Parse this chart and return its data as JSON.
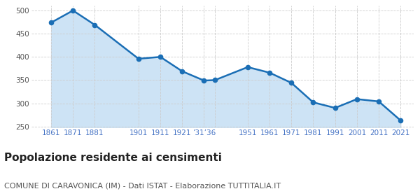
{
  "years": [
    1861,
    1871,
    1881,
    1901,
    1911,
    1921,
    1931,
    1936,
    1951,
    1961,
    1971,
    1981,
    1991,
    2001,
    2011,
    2021
  ],
  "population": [
    474,
    500,
    469,
    396,
    400,
    369,
    349,
    350,
    378,
    366,
    344,
    302,
    290,
    309,
    304,
    263
  ],
  "line_color": "#1a6eb5",
  "fill_color": "#cde3f5",
  "marker_color": "#1a6eb5",
  "background_color": "#ffffff",
  "grid_color": "#cccccc",
  "ylim": [
    248,
    510
  ],
  "yticks": [
    250,
    300,
    350,
    400,
    450,
    500
  ],
  "x_tick_positions": [
    1861,
    1871,
    1881,
    1901,
    1911,
    1921,
    1931,
    1936,
    1951,
    1961,
    1971,
    1981,
    1991,
    2001,
    2011,
    2021
  ],
  "x_tick_labels": [
    "1861",
    "1871",
    "1881",
    "1901",
    "1911",
    "1921",
    "’31’36",
    "",
    "1951",
    "1961",
    "1971",
    "1981",
    "1991",
    "2001",
    "2011",
    "2021"
  ],
  "xlim": [
    1852,
    2027
  ],
  "title": "Popolazione residente ai censimenti",
  "subtitle": "COMUNE DI CARAVONICA (IM) - Dati ISTAT - Elaborazione TUTTITALIA.IT",
  "title_fontsize": 11,
  "subtitle_fontsize": 8,
  "tick_label_color": "#4472c4",
  "tick_label_fontsize": 7.5,
  "ytick_label_color": "#555555",
  "ytick_label_fontsize": 7.5,
  "marker_size": 20,
  "linewidth": 1.8
}
